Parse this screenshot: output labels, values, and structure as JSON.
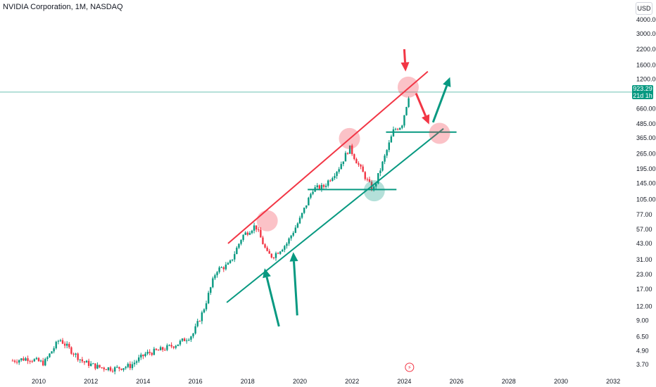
{
  "header": {
    "title": "NVIDIA Corporation, 1M, NASDAQ"
  },
  "price_axis": {
    "currency": "USD"
  },
  "last_price": {
    "value": "923.29",
    "countdown": "21d 1h"
  },
  "colors": {
    "up": "#089981",
    "down": "#f23645",
    "price_line": "#089981",
    "channel_red": "#f23645",
    "channel_green": "#089981"
  },
  "chart_data": {
    "type": "candlestick",
    "y_scale": "log",
    "y_ticks": [
      "4000.00",
      "3000.00",
      "2200.00",
      "1600.00",
      "1200.00",
      "660.00",
      "485.00",
      "365.00",
      "265.00",
      "195.00",
      "145.00",
      "105.00",
      "77.00",
      "57.00",
      "43.00",
      "31.00",
      "23.00",
      "17.00",
      "12.00",
      "9.00",
      "6.50",
      "4.90",
      "3.70"
    ],
    "x_ticks": [
      "2010",
      "2012",
      "2014",
      "2016",
      "2018",
      "2020",
      "2022",
      "2024",
      "2026",
      "2028",
      "2030",
      "2032"
    ],
    "y_range": [
      3.2,
      5000
    ],
    "x_range": [
      2008.6,
      2033.2
    ],
    "series": [
      {
        "x": [
          2009.0,
          2009.6,
          2010.2,
          2010.8,
          2011.2,
          2011.7,
          2012.3,
          2012.9,
          2013.5,
          2014.1,
          2014.7,
          2015.3,
          2015.9,
          2016.3,
          2016.8,
          2017.3,
          2017.8,
          2018.3,
          2018.75,
          2018.95,
          2019.5,
          2020.0,
          2020.5,
          2020.9,
          2021.5,
          2021.9,
          2022.3,
          2022.8,
          2023.2,
          2023.6,
          2023.9,
          2024.2
        ],
        "y": [
          4.0,
          4.2,
          3.8,
          6.2,
          5.0,
          3.9,
          3.5,
          3.4,
          3.6,
          4.6,
          5.0,
          5.6,
          6.8,
          11.0,
          25.0,
          28.0,
          50.0,
          62.0,
          35.0,
          33.0,
          43.0,
          70.0,
          130.0,
          135.0,
          200.0,
          300.0,
          200.0,
          125.0,
          230.0,
          430.0,
          470.0,
          923.29
        ]
      }
    ],
    "annotations": [
      {
        "type": "trend_line",
        "color": "red",
        "from": [
          2017.25,
          43
        ],
        "to": [
          2024.9,
          1400
        ]
      },
      {
        "type": "trend_line",
        "color": "green",
        "from": [
          2017.2,
          13
        ],
        "to": [
          2025.5,
          440
        ]
      },
      {
        "type": "horizontal_segment",
        "color": "green",
        "y": 128,
        "from": 2020.3,
        "to": 2023.7
      },
      {
        "type": "horizontal_segment",
        "color": "green",
        "y": 410,
        "from": 2023.3,
        "to": 2026.0
      },
      {
        "type": "circle",
        "color": "red",
        "x": 2018.75,
        "y": 68
      },
      {
        "type": "circle",
        "color": "red",
        "x": 2021.9,
        "y": 360
      },
      {
        "type": "circle",
        "color": "red",
        "x": 2024.15,
        "y": 1020
      },
      {
        "type": "circle",
        "color": "red",
        "x": 2025.35,
        "y": 400
      },
      {
        "type": "circle",
        "color": "green",
        "x": 2022.85,
        "y": 125
      },
      {
        "type": "arrow",
        "color": "red",
        "from": [
          2024.0,
          2200
        ],
        "to": [
          2024.05,
          1400
        ]
      },
      {
        "type": "arrow",
        "color": "red",
        "from": [
          2024.45,
          900
        ],
        "to": [
          2024.95,
          480
        ]
      },
      {
        "type": "arrow",
        "color": "green",
        "from": [
          2025.1,
          500
        ],
        "to": [
          2025.75,
          1250
        ]
      },
      {
        "type": "arrow",
        "color": "green",
        "from": [
          2019.2,
          8
        ],
        "to": [
          2018.65,
          26
        ]
      },
      {
        "type": "arrow",
        "color": "green",
        "from": [
          2019.9,
          10
        ],
        "to": [
          2019.75,
          36
        ]
      }
    ]
  }
}
